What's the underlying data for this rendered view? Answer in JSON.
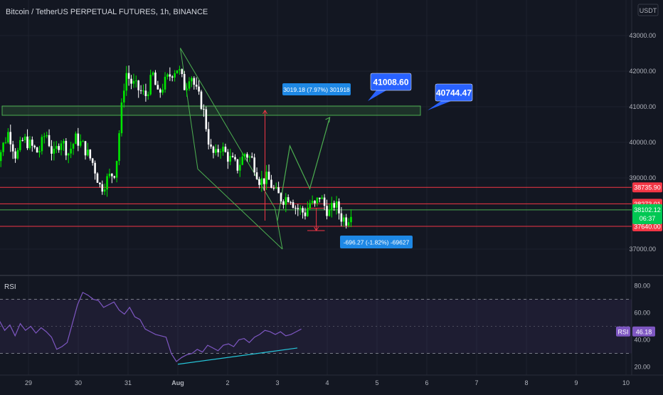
{
  "header": {
    "symbol_title": "Bitcoin / TetherUS PERPETUAL FUTURES, 1h, BINANCE",
    "currency_label": "USDT"
  },
  "colors": {
    "background": "#131722",
    "grid": "#1e222d",
    "axis_text": "#b2b5be",
    "bull_candle": "#00e600",
    "bear_candle": "#ffffff",
    "support_resistance": "#f23645",
    "zone_green": "#4caf50",
    "channel_green": "#4caf50",
    "callout_blue": "#2962ff",
    "measure_box_blue": "#1e88e5",
    "rsi_line": "#7e57c2",
    "rsi_divergence": "#26c6da"
  },
  "chart_data": [
    {
      "type": "candlestick",
      "panel": "price",
      "y_ticks": [
        "43000.00",
        "42000.00",
        "41000.00",
        "40000.00",
        "39000.00",
        "37000.00"
      ],
      "x_ticks": [
        "29",
        "30",
        "31",
        "Aug",
        "2",
        "3",
        "4",
        "5",
        "6",
        "7",
        "8",
        "9",
        "10"
      ],
      "ylim": [
        36300,
        43400
      ],
      "price_path": {
        "x_days": [
          28.3,
          28.4,
          28.6,
          28.75,
          28.9,
          29.05,
          29.2,
          29.35,
          29.5,
          29.65,
          29.8,
          29.95,
          30.1,
          30.3,
          30.45,
          30.6,
          30.75,
          30.85,
          30.95,
          31.05,
          31.2,
          31.35,
          31.5,
          31.6,
          31.7,
          31.8,
          31.9,
          32.0,
          32.15,
          32.25,
          32.35,
          32.5,
          32.65,
          32.75,
          32.85,
          33.0,
          33.2,
          33.35,
          33.5,
          33.65,
          33.8,
          33.95,
          34.1,
          34.25,
          34.35,
          34.45,
          34.55,
          34.65,
          34.75,
          34.85,
          34.95,
          35.05,
          35.15,
          35.28,
          35.4,
          35.48
        ],
        "y_price": [
          40800,
          39600,
          40300,
          39600,
          40100,
          39900,
          39700,
          40300,
          39600,
          40100,
          39700,
          40100,
          39900,
          39400,
          38700,
          39000,
          39200,
          40700,
          42000,
          41700,
          41500,
          41300,
          41900,
          41300,
          41600,
          41800,
          42000,
          42100,
          41500,
          42000,
          41500,
          41000,
          39800,
          39600,
          39900,
          39600,
          39300,
          39700,
          39500,
          38900,
          39000,
          38600,
          38400,
          38500,
          38200,
          38100,
          38000,
          38300,
          38200,
          38500,
          38200,
          38000,
          38300,
          37900,
          37800,
          38100
        ]
      },
      "annotations": {
        "right_callout_top": "41008.60",
        "right_callout_second": "40744.47",
        "measure_up_label": "3019.18 (7.97%) 301918",
        "measure_down_label": "-696.27 (-1.82%) -69627"
      },
      "levels": [
        {
          "price": 38735.9,
          "label": "38735.90",
          "color": "#f23645"
        },
        {
          "price": 38273.01,
          "label": "38273.01",
          "color": "#f23645"
        },
        {
          "price": 38102.12,
          "label": "38102.12",
          "color": "#4caf50"
        },
        {
          "price": 37640.0,
          "label": "37640.00",
          "color": "#f23645"
        }
      ],
      "current_price_label": "38102.12",
      "countdown_label": "06:37",
      "zone": {
        "price_low": 40760,
        "price_high": 41020
      }
    },
    {
      "type": "line",
      "panel": "rsi",
      "title": "RSI",
      "y_ticks": [
        "80.00",
        "60.00",
        "40.00",
        "20.00"
      ],
      "ylim": [
        14,
        86
      ],
      "band": [
        30,
        70
      ],
      "current_value": 46.18,
      "current_value_label": "46.18",
      "series_label": "RSI",
      "values": [
        58,
        52,
        55,
        44,
        54,
        47,
        51,
        43,
        52,
        47,
        50,
        45,
        49,
        46,
        42,
        33,
        35,
        38,
        52,
        66,
        75,
        73,
        70,
        69,
        64,
        66,
        68,
        62,
        59,
        64,
        57,
        55,
        48,
        46,
        44,
        43,
        42,
        30,
        24,
        27,
        29,
        30,
        33,
        31,
        36,
        34,
        32,
        36,
        37,
        35,
        40,
        41,
        38,
        42,
        44,
        47,
        46,
        44,
        46,
        43,
        44,
        46,
        48
      ]
    }
  ]
}
